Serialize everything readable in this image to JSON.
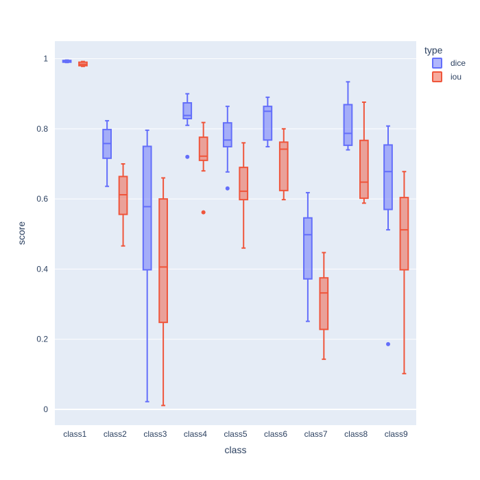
{
  "chart_data": {
    "type": "box",
    "title": "",
    "xlabel": "class",
    "ylabel": "score",
    "ylim": [
      -0.045,
      1.05
    ],
    "yticks": [
      0,
      0.2,
      0.4,
      0.6,
      0.8,
      1
    ],
    "ytick_labels": [
      "0",
      "0.2",
      "0.4",
      "0.6",
      "0.8",
      "1"
    ],
    "grid": true,
    "categories": [
      "class1",
      "class2",
      "class3",
      "class4",
      "class5",
      "class6",
      "class7",
      "class8",
      "class9"
    ],
    "legend": {
      "title": "type",
      "position": "top-right"
    },
    "series": [
      {
        "name": "dice",
        "color": "#636efa",
        "boxes": [
          {
            "lowerfence": 0.989,
            "q1": 0.99,
            "median": 0.992,
            "q3": 0.995,
            "upperfence": 0.996,
            "outliers": []
          },
          {
            "lowerfence": 0.636,
            "q1": 0.716,
            "median": 0.758,
            "q3": 0.798,
            "upperfence": 0.823,
            "outliers": []
          },
          {
            "lowerfence": 0.022,
            "q1": 0.398,
            "median": 0.578,
            "q3": 0.75,
            "upperfence": 0.796,
            "outliers": []
          },
          {
            "lowerfence": 0.81,
            "q1": 0.829,
            "median": 0.838,
            "q3": 0.874,
            "upperfence": 0.9,
            "outliers": [
              0.72
            ]
          },
          {
            "lowerfence": 0.677,
            "q1": 0.749,
            "median": 0.768,
            "q3": 0.817,
            "upperfence": 0.864,
            "outliers": [
              0.63
            ]
          },
          {
            "lowerfence": 0.749,
            "q1": 0.768,
            "median": 0.85,
            "q3": 0.864,
            "upperfence": 0.89,
            "outliers": []
          },
          {
            "lowerfence": 0.251,
            "q1": 0.372,
            "median": 0.498,
            "q3": 0.546,
            "upperfence": 0.618,
            "outliers": []
          },
          {
            "lowerfence": 0.74,
            "q1": 0.753,
            "median": 0.787,
            "q3": 0.869,
            "upperfence": 0.934,
            "outliers": []
          },
          {
            "lowerfence": 0.512,
            "q1": 0.57,
            "median": 0.678,
            "q3": 0.754,
            "upperfence": 0.808,
            "outliers": [
              0.186
            ]
          }
        ]
      },
      {
        "name": "iou",
        "color": "#ef553b",
        "boxes": [
          {
            "lowerfence": 0.978,
            "q1": 0.98,
            "median": 0.984,
            "q3": 0.99,
            "upperfence": 0.992,
            "outliers": []
          },
          {
            "lowerfence": 0.466,
            "q1": 0.556,
            "median": 0.612,
            "q3": 0.664,
            "upperfence": 0.7,
            "outliers": []
          },
          {
            "lowerfence": 0.011,
            "q1": 0.248,
            "median": 0.406,
            "q3": 0.6,
            "upperfence": 0.66,
            "outliers": []
          },
          {
            "lowerfence": 0.68,
            "q1": 0.71,
            "median": 0.722,
            "q3": 0.776,
            "upperfence": 0.818,
            "outliers": [
              0.562
            ]
          },
          {
            "lowerfence": 0.46,
            "q1": 0.598,
            "median": 0.622,
            "q3": 0.69,
            "upperfence": 0.76,
            "outliers": []
          },
          {
            "lowerfence": 0.598,
            "q1": 0.624,
            "median": 0.742,
            "q3": 0.762,
            "upperfence": 0.8,
            "outliers": []
          },
          {
            "lowerfence": 0.143,
            "q1": 0.228,
            "median": 0.332,
            "q3": 0.375,
            "upperfence": 0.447,
            "outliers": []
          },
          {
            "lowerfence": 0.588,
            "q1": 0.602,
            "median": 0.648,
            "q3": 0.767,
            "upperfence": 0.876,
            "outliers": []
          },
          {
            "lowerfence": 0.102,
            "q1": 0.398,
            "median": 0.512,
            "q3": 0.604,
            "upperfence": 0.678,
            "outliers": []
          }
        ]
      }
    ]
  }
}
